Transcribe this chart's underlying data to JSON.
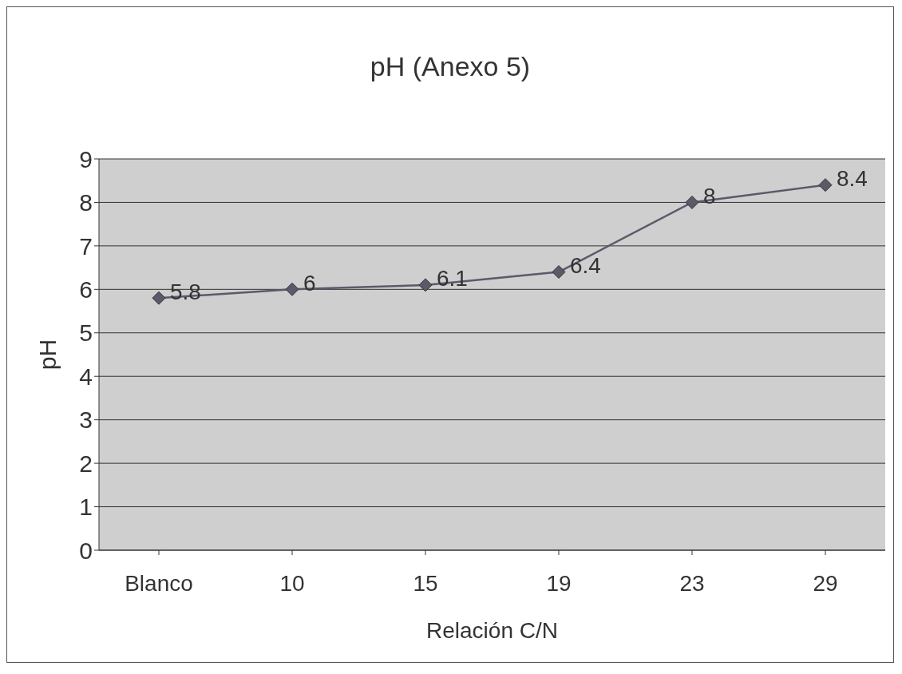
{
  "chart_data": {
    "type": "line",
    "title": "pH (Anexo 5)",
    "xlabel": "Relación C/N",
    "ylabel": "pH",
    "categories": [
      "Blanco",
      "10",
      "15",
      "19",
      "23",
      "29"
    ],
    "series": [
      {
        "color": "#5a5a6a",
        "values": [
          5.8,
          6,
          6.1,
          6.4,
          8,
          8.4
        ]
      }
    ],
    "ylim": [
      0,
      9
    ],
    "yticks": [
      0,
      1,
      2,
      3,
      4,
      5,
      6,
      7,
      8,
      9
    ],
    "grid": "y",
    "marker": "diamond",
    "line_style": "solid",
    "data_labels": true
  }
}
